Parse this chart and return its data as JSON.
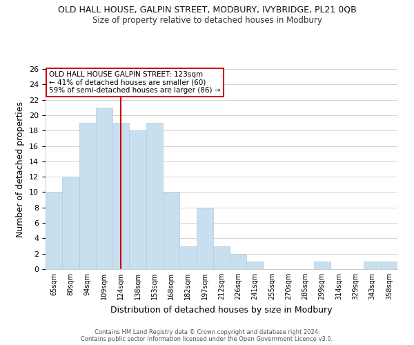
{
  "title": "OLD HALL HOUSE, GALPIN STREET, MODBURY, IVYBRIDGE, PL21 0QB",
  "subtitle": "Size of property relative to detached houses in Modbury",
  "xlabel": "Distribution of detached houses by size in Modbury",
  "ylabel": "Number of detached properties",
  "bar_color": "#c8dff0",
  "bar_edgecolor": "#b0cce0",
  "categories": [
    "65sqm",
    "80sqm",
    "94sqm",
    "109sqm",
    "124sqm",
    "138sqm",
    "153sqm",
    "168sqm",
    "182sqm",
    "197sqm",
    "212sqm",
    "226sqm",
    "241sqm",
    "255sqm",
    "270sqm",
    "285sqm",
    "299sqm",
    "314sqm",
    "329sqm",
    "343sqm",
    "358sqm"
  ],
  "values": [
    10,
    12,
    19,
    21,
    19,
    18,
    19,
    10,
    3,
    8,
    3,
    2,
    1,
    0,
    0,
    0,
    1,
    0,
    0,
    1,
    1
  ],
  "ylim": [
    0,
    26
  ],
  "yticks": [
    0,
    2,
    4,
    6,
    8,
    10,
    12,
    14,
    16,
    18,
    20,
    22,
    24,
    26
  ],
  "vline_x_index": 4,
  "vline_color": "#cc0000",
  "annotation_line1": "OLD HALL HOUSE GALPIN STREET: 123sqm",
  "annotation_line2": "← 41% of detached houses are smaller (60)",
  "annotation_line3": "59% of semi-detached houses are larger (86) →",
  "footer1": "Contains HM Land Registry data © Crown copyright and database right 2024.",
  "footer2": "Contains public sector information licensed under the Open Government Licence v3.0.",
  "background_color": "#ffffff",
  "grid_color": "#cccccc"
}
